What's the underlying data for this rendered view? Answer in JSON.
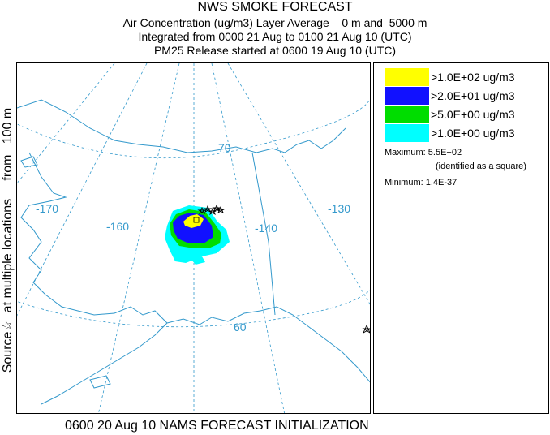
{
  "title": "NWS SMOKE FORECAST",
  "subtitle_line1": "Air Concentration (ug/m3) Layer Average    0 m and  5000 m",
  "subtitle_line2": "Integrated from 0000 21 Aug to 0100 21 Aug 10 (UTC)",
  "subtitle_line3": "PM25 Release started at 0600 19 Aug 10 (UTC)",
  "side_label": "Source☆  at multiple locations     from   100 m",
  "footer": "0600 20 Aug 10 NAMS FORECAST INITIALIZATION",
  "map": {
    "graticule_labels": [
      "-170",
      "-160",
      "-140",
      "-130",
      "70",
      "60"
    ],
    "colors": {
      "coast": "#3399cc",
      "graticule": "#3399cc",
      "yellow": "#ffff00",
      "blue": "#1111ff",
      "green": "#00dd00",
      "cyan": "#00ffff"
    }
  },
  "legend": {
    "items": [
      {
        "label": ">1.0E+02 ug/m3",
        "color": "#ffff00"
      },
      {
        "label": ">2.0E+01 ug/m3",
        "color": "#1111ff"
      },
      {
        "label": ">5.0E+00 ug/m3",
        "color": "#00dd00"
      },
      {
        "label": ">1.0E+00 ug/m3",
        "color": "#00ffff"
      }
    ],
    "maximum": "Maximum: 5.5E+02",
    "maximum_note": "(identified as a square)",
    "minimum": "Minimum: 1.4E-37"
  }
}
